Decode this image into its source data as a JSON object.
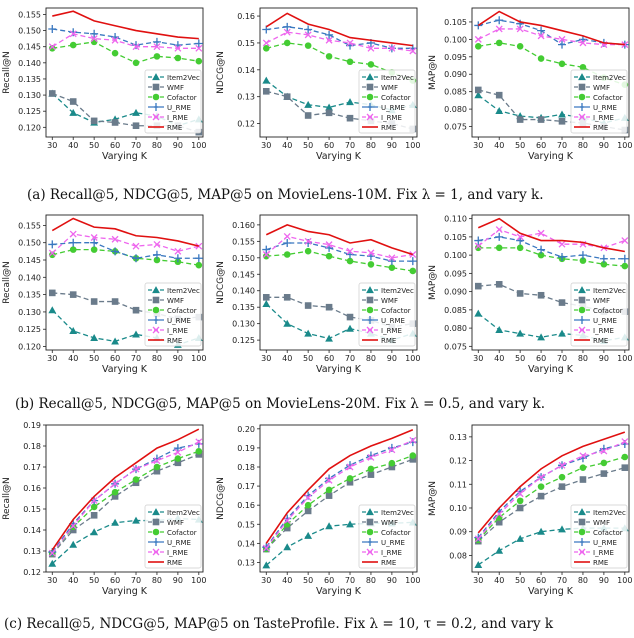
{
  "xlabel": "Varying K",
  "legend": [
    "Item2Vec",
    "WMF",
    "Cofactor",
    "U_RME",
    "I_RME",
    "RME"
  ],
  "colors": {
    "Item2Vec": "#1a8a8a",
    "WMF": "#6a7b8b",
    "Cofactor": "#44cc33",
    "U_RME": "#3a78c0",
    "I_RME": "#ee66ee",
    "RME": "#e01010"
  },
  "captions": [
    "(a)  Recall@5, NDCG@5, MAP@5 on MovieLens-10M. Fix λ = 1, and vary k.",
    "(b)  Recall@5, NDCG@5, MAP@5 on MovieLens-20M. Fix λ = 0.5, and vary k.",
    "(c)  Recall@5, NDCG@5, MAP@5 on TasteProfile. Fix λ = 10, τ = 0.2, and vary k"
  ],
  "chart_data": [
    {
      "type": "line",
      "title": "",
      "xlabel": "Varying K",
      "ylabel": "Recall@N",
      "x": [
        30,
        40,
        50,
        60,
        70,
        80,
        90,
        100
      ],
      "xlim": [
        27,
        102
      ],
      "ylim": [
        0.117,
        0.157
      ],
      "yticks": [
        0.12,
        0.125,
        0.13,
        0.135,
        0.14,
        0.145,
        0.15,
        0.155
      ],
      "series": [
        {
          "name": "Item2Vec",
          "values": [
            0.1305,
            0.1245,
            0.1215,
            0.1225,
            0.1245,
            0.1235,
            0.1205,
            0.1225
          ]
        },
        {
          "name": "WMF",
          "values": [
            0.1305,
            0.128,
            0.122,
            0.1215,
            0.1205,
            0.1205,
            0.1205,
            0.1185
          ]
        },
        {
          "name": "Cofactor",
          "values": [
            0.1445,
            0.1455,
            0.1465,
            0.143,
            0.14,
            0.142,
            0.1415,
            0.1405
          ]
        },
        {
          "name": "U_RME",
          "values": [
            0.1505,
            0.1495,
            0.149,
            0.148,
            0.1455,
            0.1465,
            0.1455,
            0.146
          ]
        },
        {
          "name": "I_RME",
          "values": [
            0.145,
            0.149,
            0.1475,
            0.147,
            0.145,
            0.145,
            0.1445,
            0.1445
          ]
        },
        {
          "name": "RME",
          "values": [
            0.1545,
            0.156,
            0.153,
            0.1515,
            0.15,
            0.149,
            0.148,
            0.1475
          ]
        }
      ]
    },
    {
      "type": "line",
      "title": "",
      "xlabel": "Varying K",
      "ylabel": "NDCG@N",
      "x": [
        30,
        40,
        50,
        60,
        70,
        80,
        90,
        100
      ],
      "xlim": [
        27,
        102
      ],
      "ylim": [
        0.115,
        0.163
      ],
      "yticks": [
        0.12,
        0.13,
        0.14,
        0.15,
        0.16
      ],
      "series": [
        {
          "name": "Item2Vec",
          "values": [
            0.136,
            0.13,
            0.127,
            0.126,
            0.128,
            0.127,
            0.125,
            0.127
          ]
        },
        {
          "name": "WMF",
          "values": [
            0.132,
            0.13,
            0.123,
            0.124,
            0.122,
            0.121,
            0.12,
            0.118
          ]
        },
        {
          "name": "Cofactor",
          "values": [
            0.148,
            0.15,
            0.149,
            0.145,
            0.143,
            0.142,
            0.139,
            0.136
          ]
        },
        {
          "name": "U_RME",
          "values": [
            0.155,
            0.156,
            0.155,
            0.153,
            0.149,
            0.15,
            0.148,
            0.148
          ]
        },
        {
          "name": "I_RME",
          "values": [
            0.15,
            0.154,
            0.153,
            0.151,
            0.15,
            0.148,
            0.148,
            0.147
          ]
        },
        {
          "name": "RME",
          "values": [
            0.156,
            0.161,
            0.157,
            0.155,
            0.152,
            0.151,
            0.15,
            0.149
          ]
        }
      ]
    },
    {
      "type": "line",
      "title": "",
      "xlabel": "Varying K",
      "ylabel": "MAP@N",
      "x": [
        30,
        40,
        50,
        60,
        70,
        80,
        90,
        100
      ],
      "xlim": [
        27,
        102
      ],
      "ylim": [
        0.072,
        0.109
      ],
      "yticks": [
        0.075,
        0.08,
        0.085,
        0.09,
        0.095,
        0.1,
        0.105
      ],
      "series": [
        {
          "name": "Item2Vec",
          "values": [
            0.084,
            0.0795,
            0.078,
            0.0775,
            0.0785,
            0.0775,
            0.076,
            0.0775
          ]
        },
        {
          "name": "WMF",
          "values": [
            0.0855,
            0.084,
            0.077,
            0.077,
            0.0765,
            0.076,
            0.075,
            0.074
          ]
        },
        {
          "name": "Cofactor",
          "values": [
            0.098,
            0.099,
            0.098,
            0.0945,
            0.093,
            0.092,
            0.089,
            0.087
          ]
        },
        {
          "name": "U_RME",
          "values": [
            0.104,
            0.1055,
            0.1045,
            0.1025,
            0.0985,
            0.1,
            0.099,
            0.0985
          ]
        },
        {
          "name": "I_RME",
          "values": [
            0.1,
            0.103,
            0.103,
            0.101,
            0.1,
            0.099,
            0.0985,
            0.0985
          ]
        },
        {
          "name": "RME",
          "values": [
            0.104,
            0.108,
            0.105,
            0.104,
            0.1025,
            0.101,
            0.099,
            0.0985
          ]
        }
      ]
    },
    {
      "type": "line",
      "title": "",
      "xlabel": "Varying K",
      "ylabel": "Recall@N",
      "x": [
        30,
        40,
        50,
        60,
        70,
        80,
        90,
        100
      ],
      "xlim": [
        27,
        102
      ],
      "ylim": [
        0.119,
        0.158
      ],
      "yticks": [
        0.12,
        0.125,
        0.13,
        0.135,
        0.14,
        0.145,
        0.15,
        0.155
      ],
      "series": [
        {
          "name": "Item2Vec",
          "values": [
            0.1305,
            0.1245,
            0.1225,
            0.1215,
            0.1235,
            0.1225,
            0.1205,
            0.1225
          ]
        },
        {
          "name": "WMF",
          "values": [
            0.1355,
            0.135,
            0.133,
            0.133,
            0.1305,
            0.1295,
            0.128,
            0.1285
          ]
        },
        {
          "name": "Cofactor",
          "values": [
            0.1465,
            0.148,
            0.148,
            0.1475,
            0.1455,
            0.145,
            0.1445,
            0.1435
          ]
        },
        {
          "name": "U_RME",
          "values": [
            0.1495,
            0.15,
            0.15,
            0.1475,
            0.1455,
            0.1465,
            0.1455,
            0.1455
          ]
        },
        {
          "name": "I_RME",
          "values": [
            0.147,
            0.1525,
            0.1515,
            0.151,
            0.149,
            0.1495,
            0.1475,
            0.149
          ]
        },
        {
          "name": "RME",
          "values": [
            0.1535,
            0.157,
            0.1545,
            0.154,
            0.152,
            0.1515,
            0.1505,
            0.149
          ]
        }
      ]
    },
    {
      "type": "line",
      "title": "",
      "xlabel": "Varying K",
      "ylabel": "NDCG@N",
      "x": [
        30,
        40,
        50,
        60,
        70,
        80,
        90,
        100
      ],
      "xlim": [
        27,
        102
      ],
      "ylim": [
        0.122,
        0.163
      ],
      "yticks": [
        0.125,
        0.13,
        0.135,
        0.14,
        0.145,
        0.15,
        0.155,
        0.16
      ],
      "series": [
        {
          "name": "Item2Vec",
          "values": [
            0.136,
            0.13,
            0.127,
            0.1255,
            0.1285,
            0.127,
            0.125,
            0.127
          ]
        },
        {
          "name": "WMF",
          "values": [
            0.138,
            0.138,
            0.1355,
            0.135,
            0.132,
            0.131,
            0.129,
            0.13
          ]
        },
        {
          "name": "Cofactor",
          "values": [
            0.1505,
            0.151,
            0.152,
            0.1505,
            0.149,
            0.148,
            0.147,
            0.146
          ]
        },
        {
          "name": "U_RME",
          "values": [
            0.1525,
            0.1545,
            0.1545,
            0.153,
            0.151,
            0.1505,
            0.149,
            0.149
          ]
        },
        {
          "name": "I_RME",
          "values": [
            0.151,
            0.1565,
            0.155,
            0.154,
            0.152,
            0.1515,
            0.15,
            0.151
          ]
        },
        {
          "name": "RME",
          "values": [
            0.157,
            0.16,
            0.158,
            0.157,
            0.1545,
            0.1555,
            0.153,
            0.151
          ]
        }
      ]
    },
    {
      "type": "line",
      "title": "",
      "xlabel": "Varying K",
      "ylabel": "MAP@N",
      "x": [
        30,
        40,
        50,
        60,
        70,
        80,
        90,
        100
      ],
      "xlim": [
        27,
        102
      ],
      "ylim": [
        0.074,
        0.111
      ],
      "yticks": [
        0.075,
        0.08,
        0.085,
        0.09,
        0.095,
        0.1,
        0.105,
        0.11
      ],
      "series": [
        {
          "name": "Item2Vec",
          "values": [
            0.084,
            0.0795,
            0.0785,
            0.0775,
            0.0785,
            0.078,
            0.0765,
            0.0775
          ]
        },
        {
          "name": "WMF",
          "values": [
            0.0915,
            0.092,
            0.0895,
            0.089,
            0.087,
            0.086,
            0.0845,
            0.0845
          ]
        },
        {
          "name": "Cofactor",
          "values": [
            0.102,
            0.102,
            0.102,
            0.1,
            0.099,
            0.0985,
            0.0975,
            0.097
          ]
        },
        {
          "name": "U_RME",
          "values": [
            0.104,
            0.105,
            0.104,
            0.1015,
            0.0995,
            0.1,
            0.099,
            0.099
          ]
        },
        {
          "name": "I_RME",
          "values": [
            0.1025,
            0.107,
            0.105,
            0.106,
            0.103,
            0.103,
            0.102,
            0.104
          ]
        },
        {
          "name": "RME",
          "values": [
            0.1075,
            0.11,
            0.106,
            0.104,
            0.104,
            0.1035,
            0.102,
            0.101
          ]
        }
      ]
    },
    {
      "type": "line",
      "title": "",
      "xlabel": "Varying K",
      "ylabel": "Recall@N",
      "x": [
        30,
        40,
        50,
        60,
        70,
        80,
        90,
        100
      ],
      "xlim": [
        27,
        102
      ],
      "ylim": [
        0.12,
        0.19
      ],
      "yticks": [
        0.12,
        0.13,
        0.14,
        0.15,
        0.16,
        0.17,
        0.18,
        0.19
      ],
      "series": [
        {
          "name": "Item2Vec",
          "values": [
            0.124,
            0.133,
            0.139,
            0.1435,
            0.1445,
            0.1445,
            0.1455,
            0.145
          ]
        },
        {
          "name": "WMF",
          "values": [
            0.1285,
            0.14,
            0.147,
            0.156,
            0.1625,
            0.168,
            0.172,
            0.176
          ]
        },
        {
          "name": "Cofactor",
          "values": [
            0.129,
            0.1415,
            0.151,
            0.158,
            0.164,
            0.17,
            0.174,
            0.1775
          ]
        },
        {
          "name": "U_RME",
          "values": [
            0.1295,
            0.143,
            0.154,
            0.162,
            0.169,
            0.174,
            0.179,
            0.181
          ]
        },
        {
          "name": "I_RME",
          "values": [
            0.129,
            0.142,
            0.154,
            0.162,
            0.169,
            0.173,
            0.177,
            0.182
          ]
        },
        {
          "name": "RME",
          "values": [
            0.1305,
            0.145,
            0.156,
            0.165,
            0.172,
            0.179,
            0.183,
            0.188
          ]
        }
      ]
    },
    {
      "type": "line",
      "title": "",
      "xlabel": "Varying K",
      "ylabel": "NDCG@N",
      "x": [
        30,
        40,
        50,
        60,
        70,
        80,
        90,
        100
      ],
      "xlim": [
        27,
        102
      ],
      "ylim": [
        0.125,
        0.202
      ],
      "yticks": [
        0.13,
        0.14,
        0.15,
        0.16,
        0.17,
        0.18,
        0.19,
        0.2
      ],
      "series": [
        {
          "name": "Item2Vec",
          "values": [
            0.1285,
            0.138,
            0.144,
            0.149,
            0.15,
            0.1505,
            0.1505,
            0.151
          ]
        },
        {
          "name": "WMF",
          "values": [
            0.137,
            0.148,
            0.157,
            0.165,
            0.172,
            0.176,
            0.18,
            0.184
          ]
        },
        {
          "name": "Cofactor",
          "values": [
            0.137,
            0.15,
            0.16,
            0.168,
            0.174,
            0.179,
            0.182,
            0.186
          ]
        },
        {
          "name": "U_RME",
          "values": [
            0.138,
            0.153,
            0.165,
            0.174,
            0.181,
            0.186,
            0.19,
            0.193
          ]
        },
        {
          "name": "I_RME",
          "values": [
            0.1375,
            0.152,
            0.164,
            0.173,
            0.18,
            0.185,
            0.189,
            0.194
          ]
        },
        {
          "name": "RME",
          "values": [
            0.14,
            0.156,
            0.168,
            0.179,
            0.186,
            0.191,
            0.195,
            0.1995
          ]
        }
      ]
    },
    {
      "type": "line",
      "title": "",
      "xlabel": "Varying K",
      "ylabel": "MAP@N",
      "x": [
        30,
        40,
        50,
        60,
        70,
        80,
        90,
        100
      ],
      "xlim": [
        27,
        102
      ],
      "ylim": [
        0.073,
        0.135
      ],
      "yticks": [
        0.08,
        0.09,
        0.1,
        0.11,
        0.12,
        0.13
      ],
      "series": [
        {
          "name": "Item2Vec",
          "values": [
            0.076,
            0.082,
            0.087,
            0.09,
            0.091,
            0.0915,
            0.0915,
            0.0915
          ]
        },
        {
          "name": "WMF",
          "values": [
            0.086,
            0.094,
            0.1,
            0.105,
            0.109,
            0.112,
            0.1145,
            0.117
          ]
        },
        {
          "name": "Cofactor",
          "values": [
            0.0865,
            0.096,
            0.103,
            0.109,
            0.113,
            0.117,
            0.119,
            0.1215
          ]
        },
        {
          "name": "U_RME",
          "values": [
            0.0875,
            0.0985,
            0.107,
            0.113,
            0.118,
            0.121,
            0.125,
            0.127
          ]
        },
        {
          "name": "I_RME",
          "values": [
            0.087,
            0.0975,
            0.106,
            0.113,
            0.118,
            0.122,
            0.124,
            0.128
          ]
        },
        {
          "name": "RME",
          "values": [
            0.0895,
            0.1,
            0.109,
            0.1165,
            0.122,
            0.126,
            0.129,
            0.132
          ]
        }
      ]
    }
  ]
}
